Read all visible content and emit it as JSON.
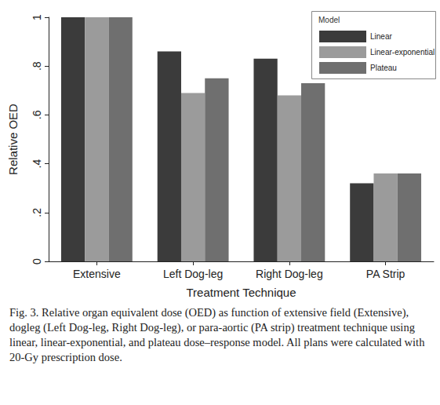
{
  "chart_data": {
    "type": "bar",
    "x_label": "Treatment Technique",
    "y_label": "Relative OED",
    "categories": [
      "Extensive",
      "Left Dog-leg",
      "Right Dog-leg",
      "PA Strip"
    ],
    "series": [
      {
        "name": "Linear",
        "color": "#3b3b3b",
        "values": [
          1.0,
          0.86,
          0.83,
          0.32
        ]
      },
      {
        "name": "Linear-exponential",
        "color": "#9b9b9b",
        "values": [
          1.0,
          0.69,
          0.68,
          0.36
        ]
      },
      {
        "name": "Plateau",
        "color": "#6f6f6f",
        "values": [
          1.0,
          0.75,
          0.73,
          0.36
        ]
      }
    ],
    "legend_title": "Model",
    "legend": "upper right",
    "ylim": [
      0,
      1
    ],
    "yticks": [
      0,
      {
        "value": 0.2,
        "label": ".2"
      },
      {
        "value": 0.4,
        "label": ".4"
      },
      {
        "value": 0.6,
        "label": ".6"
      },
      {
        "value": 0.8,
        "label": ".8"
      },
      1
    ],
    "grid": false,
    "caption": "Fig. 3.  Relative organ equivalent dose (OED) as function of extensive field (Extensive), dogleg (Left Dog-leg, Right Dog-leg), or para-aortic (PA strip) treatment technique using linear, linear-exponential, and plateau dose–response model. All plans were calculated with 20-Gy prescription dose."
  }
}
